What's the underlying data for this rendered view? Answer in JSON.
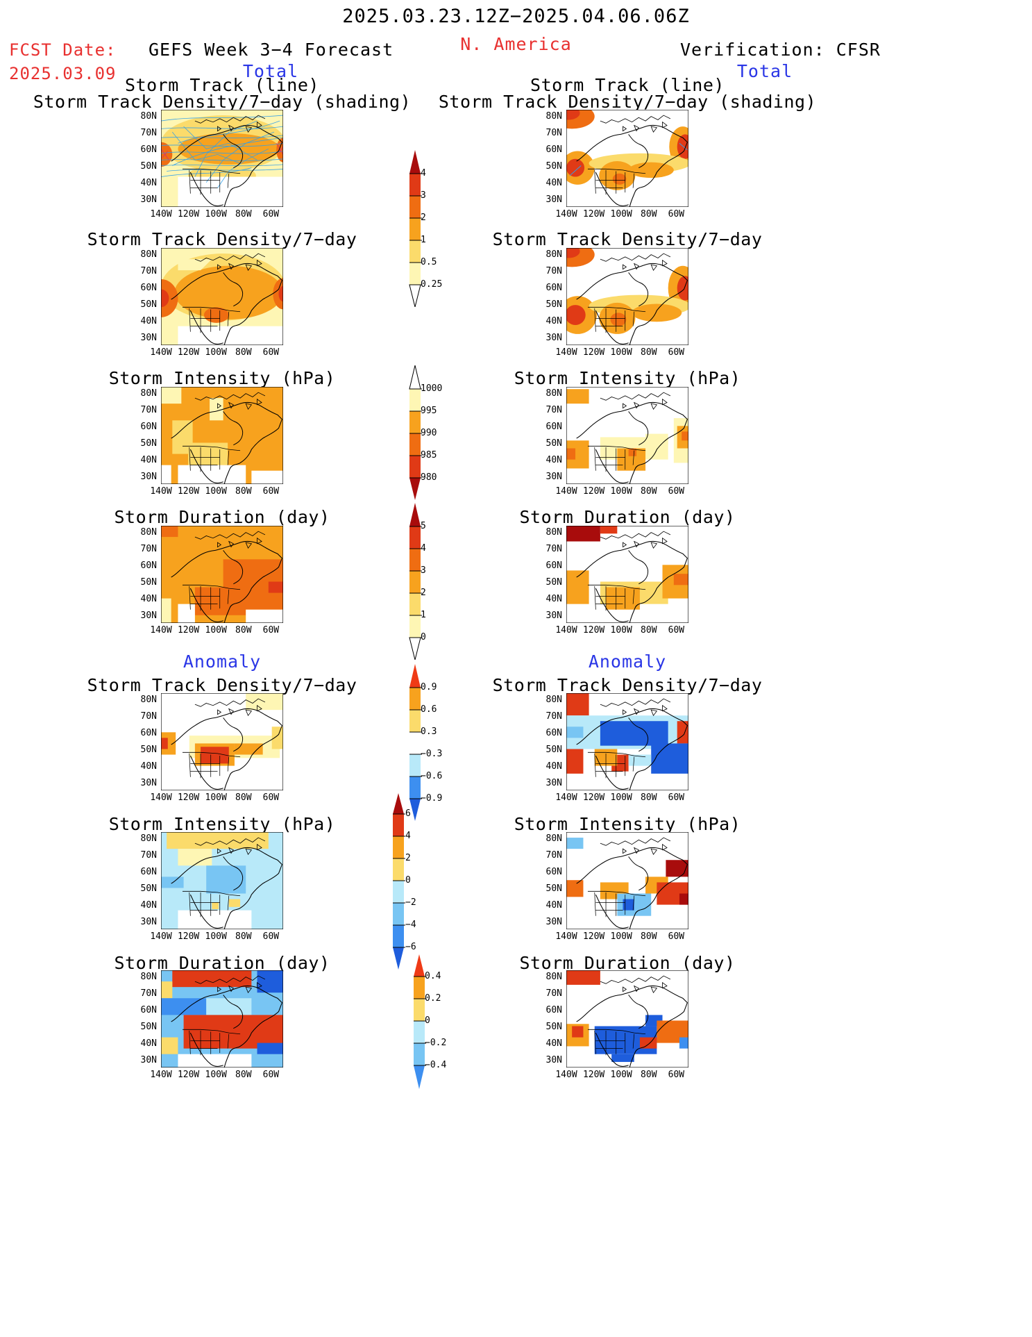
{
  "header": {
    "period": "2025.03.23.12Z−2025.04.06.06Z",
    "fcst_label": "FCST Date:",
    "fcst_date": "2025.03.09",
    "forecast_title": "GEFS Week 3−4 Forecast",
    "region": "N. America",
    "verification": "Verification: CFSR"
  },
  "sections": {
    "total": "Total",
    "anomaly": "Anomaly"
  },
  "panels": {
    "track_line": "Storm Track (line)",
    "track_shading": "Storm Track Density/7−day (shading)",
    "density": "Storm Track Density/7−day",
    "intensity": "Storm Intensity (hPa)",
    "duration": "Storm Duration (day)"
  },
  "axes": {
    "lat": [
      "80N",
      "70N",
      "60N",
      "50N",
      "40N",
      "30N"
    ],
    "lon": [
      "140W",
      "120W",
      "100W",
      "80W",
      "60W"
    ]
  },
  "colorbars": {
    "density_total": [
      "4",
      "3",
      "2",
      "1",
      "0.5",
      "0.25"
    ],
    "intensity_total": [
      "1000",
      "995",
      "990",
      "985",
      "980"
    ],
    "duration_total": [
      "5",
      "4",
      "3",
      "2",
      "1",
      "0"
    ],
    "density_anom": [
      "0.9",
      "0.6",
      "0.3",
      "−0.3",
      "−0.6",
      "−0.9"
    ],
    "intensity_anom": [
      "6",
      "4",
      "2",
      "0",
      "−2",
      "−4",
      "−6"
    ],
    "duration_anom": [
      "0.4",
      "0.2",
      "0",
      "−0.2",
      "−0.4"
    ]
  },
  "colors": {
    "lightyellow": "#fef6b4",
    "yellow": "#fbdb6b",
    "orange": "#f7a21e",
    "darkorange": "#ef6d12",
    "red": "#e03a16",
    "darkred": "#a80c0c",
    "lightblue": "#b8e9f9",
    "skyblue": "#78c5f3",
    "blue": "#3d8ff0",
    "darkblue": "#1e5ddc",
    "track": "#33a0e8"
  }
}
